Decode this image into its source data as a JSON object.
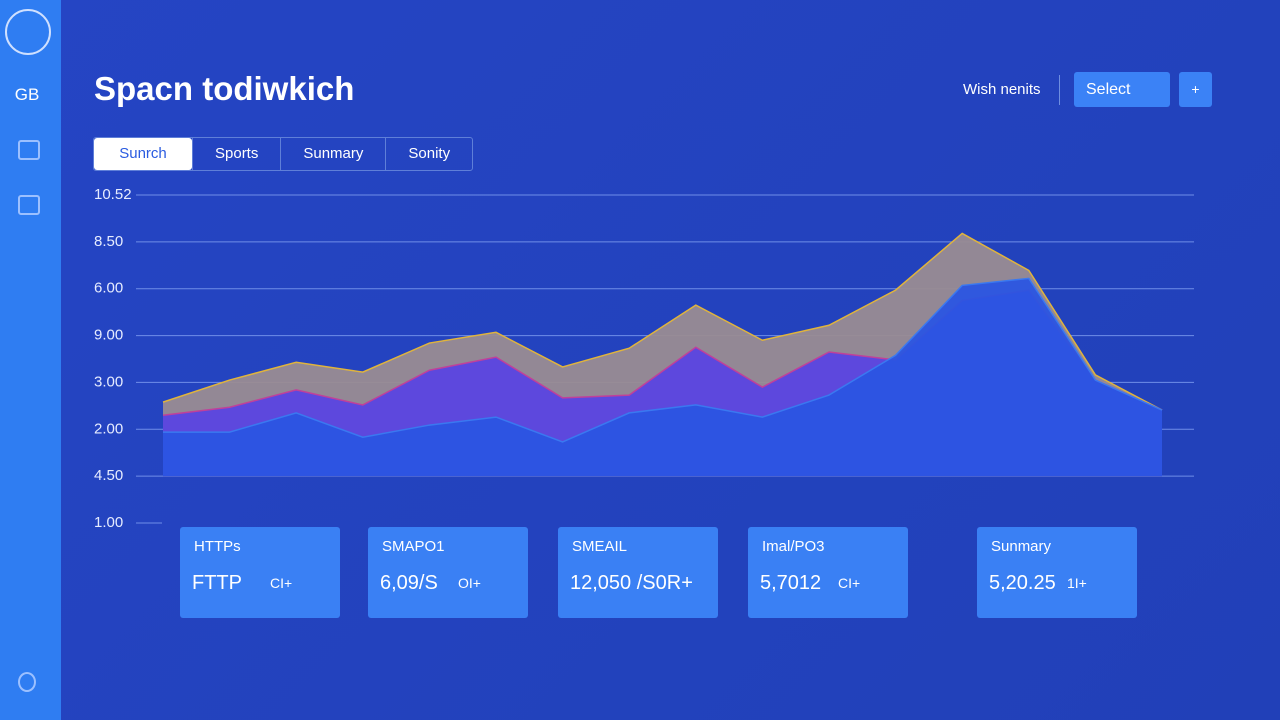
{
  "sidebar": {
    "brand": "GB"
  },
  "header": {
    "title": "Spacn todiwkich",
    "link": "Wish nenits",
    "select": "Select",
    "button": "+"
  },
  "tabs": [
    "Sunrch",
    "Sports",
    "Sunmary",
    "Sonity"
  ],
  "chart_data": {
    "type": "area",
    "categories": [
      null,
      null,
      null,
      null,
      null,
      null,
      null,
      null,
      null,
      null,
      null,
      null,
      null,
      null,
      null,
      null
    ],
    "ylim": [
      0,
      7
    ],
    "yticks": [
      {
        "value": 0,
        "label": "1.00"
      },
      {
        "value": 1,
        "label": "4.50"
      },
      {
        "value": 2,
        "label": "2.00"
      },
      {
        "value": 3,
        "label": "3.00"
      },
      {
        "value": 4,
        "label": "9.00"
      },
      {
        "value": 5,
        "label": "6.00"
      },
      {
        "value": 6,
        "label": "8.50"
      },
      {
        "value": 7,
        "label": "10.52"
      }
    ],
    "grid": true,
    "series": [
      {
        "color": "#9a8c92",
        "stroke": "#e0b43c",
        "values": [
          2.58,
          3.05,
          3.43,
          3.22,
          3.84,
          4.07,
          3.33,
          3.73,
          4.65,
          3.9,
          4.22,
          4.97,
          6.18,
          5.39,
          3.16,
          2.41
        ]
      },
      {
        "color": "#5a44e0",
        "stroke": "#c0409a",
        "values": [
          2.3,
          2.47,
          2.84,
          2.52,
          3.26,
          3.54,
          2.67,
          2.73,
          3.75,
          2.9,
          3.65,
          3.48,
          4.75,
          4.97,
          3.05,
          2.41
        ]
      },
      {
        "color": "#2a55e2",
        "stroke": "#3a78f0",
        "values": [
          1.94,
          1.94,
          2.35,
          1.83,
          2.09,
          2.26,
          1.73,
          2.35,
          2.52,
          2.26,
          2.73,
          3.58,
          5.07,
          5.22,
          3.05,
          2.41
        ]
      }
    ]
  },
  "cards": [
    {
      "label": "HTTPs",
      "value": "FTTP",
      "badge": "CI+"
    },
    {
      "label": "SMAPO1",
      "value": "6,09/S",
      "badge": "OI+"
    },
    {
      "label": "SMEAIL",
      "value": "12,050 /S0R+",
      "badge": ""
    },
    {
      "label": "Imal/PO3",
      "value": "5,7012",
      "badge": "CI+"
    },
    {
      "label": "Sunmary",
      "value": "5,20.25",
      "badge": "1I+"
    }
  ]
}
